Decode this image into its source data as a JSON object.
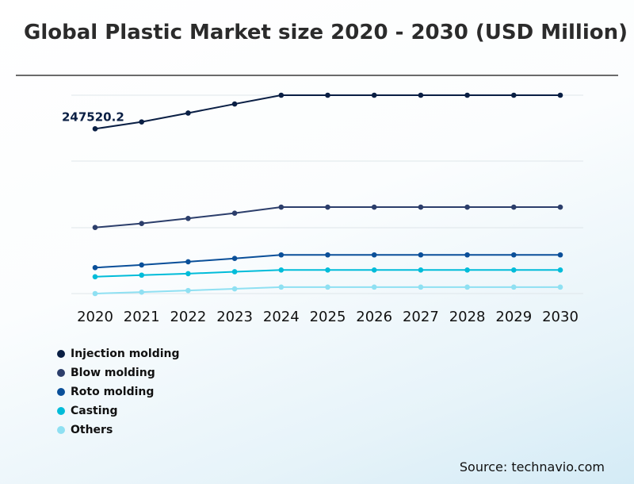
{
  "title": "Global Plastic Market size 2020 - 2030 (USD Million)",
  "source": "Source: technavio.com",
  "chart_data": {
    "type": "line",
    "title": "Global Plastic Market size 2020 - 2030 (USD Million)",
    "xlabel": "",
    "ylabel": "",
    "categories": [
      "2020",
      "2021",
      "2022",
      "2023",
      "2024",
      "2025",
      "2026",
      "2027",
      "2028",
      "2029",
      "2030"
    ],
    "series": [
      {
        "name": "Injection molding",
        "color": "#0a1f44",
        "values": [
          247520.2,
          257900,
          271200,
          284800,
          298000,
          298000,
          298000,
          298000,
          298000,
          298000,
          298000
        ]
      },
      {
        "name": "Blow molding",
        "color": "#2c3e6b",
        "values": [
          99300,
          105300,
          112900,
          120800,
          129900,
          129900,
          129900,
          129900,
          129900,
          129900,
          129900
        ]
      },
      {
        "name": "Roto molding",
        "color": "#0a4f99",
        "values": [
          39000,
          43000,
          47800,
          52800,
          58100,
          58100,
          58100,
          58100,
          58100,
          58100,
          58100
        ]
      },
      {
        "name": "Casting",
        "color": "#00bcd9",
        "values": [
          25300,
          27700,
          29900,
          32800,
          35400,
          35400,
          35400,
          35400,
          35400,
          35400,
          35400
        ]
      },
      {
        "name": "Others",
        "color": "#8fe0f2",
        "values": [
          0,
          2200,
          4600,
          7100,
          9700,
          9700,
          9700,
          9700,
          9700,
          9700,
          9700
        ]
      }
    ],
    "data_labels": [
      {
        "series": 0,
        "index": 0,
        "text": "247520.2"
      }
    ],
    "ylim": [
      0,
      298000
    ],
    "grid": true,
    "legend_position": "bottom-left"
  }
}
